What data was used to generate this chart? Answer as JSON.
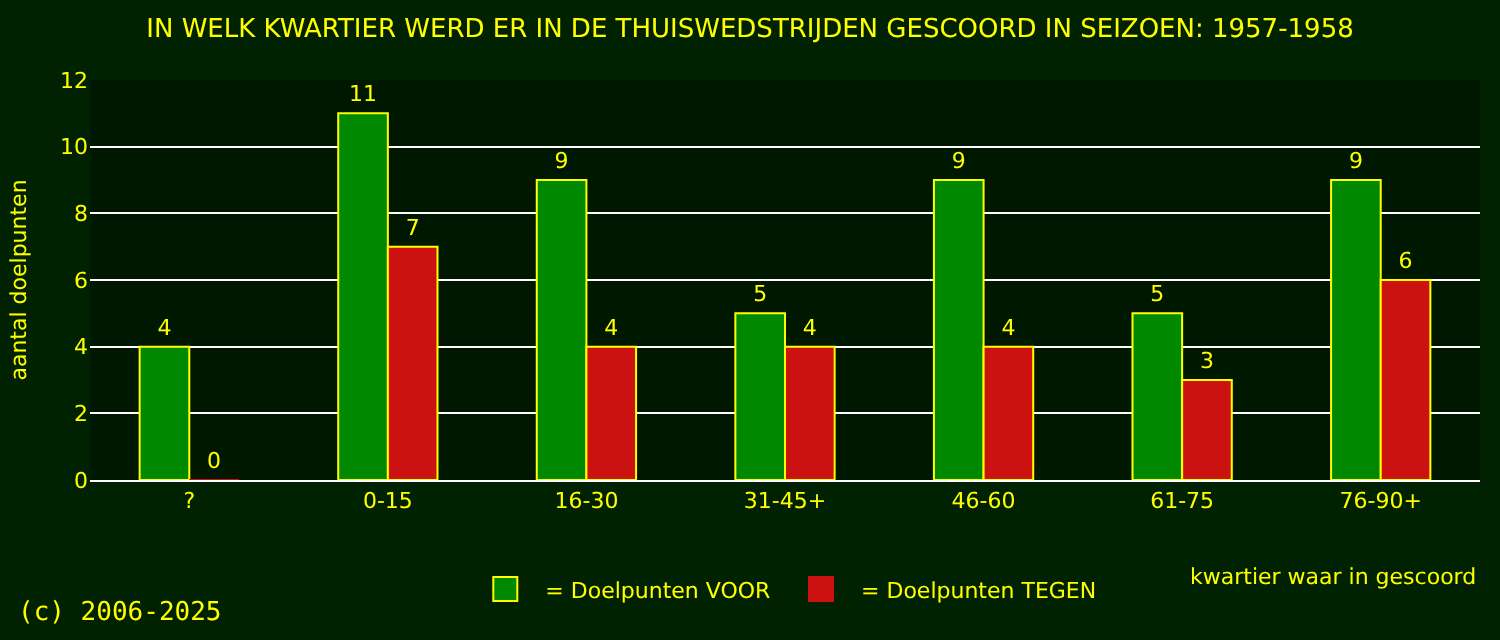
{
  "chart_data": {
    "type": "bar",
    "title": "IN WELK KWARTIER WERD ER IN DE THUISWEDSTRIJDEN GESCOORD IN SEIZOEN: 1957-1958",
    "xlabel": "kwartier waar in gescoord",
    "ylabel": "aantal doelpunten",
    "categories": [
      "?",
      "0-15",
      "16-30",
      "31-45+",
      "46-60",
      "61-75",
      "76-90+"
    ],
    "series": [
      {
        "name": "= Doelpunten VOOR",
        "color": "#008800",
        "values": [
          4,
          11,
          9,
          5,
          9,
          5,
          9
        ]
      },
      {
        "name": "= Doelpunten TEGEN",
        "color": "#cc1111",
        "values": [
          0,
          7,
          4,
          4,
          4,
          3,
          6
        ]
      }
    ],
    "ylim": [
      0,
      12
    ],
    "yticks": [
      0,
      2,
      4,
      6,
      8,
      10,
      12
    ],
    "grid": "y",
    "legend": "bottom",
    "data_labels": true,
    "annotations": [
      "(c) 2006-2025"
    ]
  }
}
